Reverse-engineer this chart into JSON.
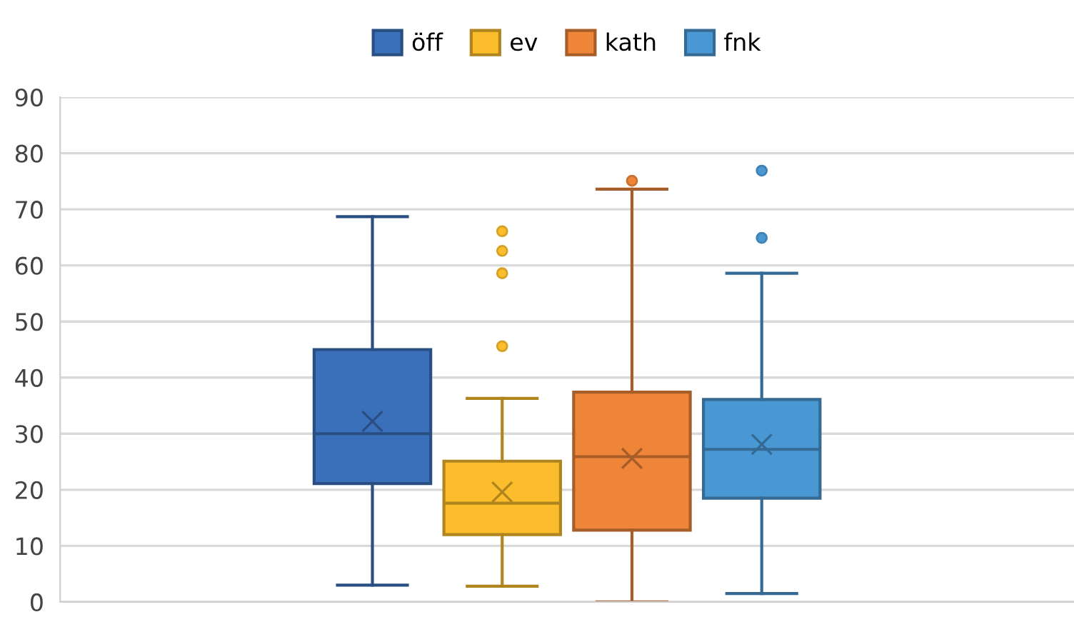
{
  "chart_data": {
    "type": "box",
    "categories": [
      null
    ],
    "series": [
      {
        "name": "öff",
        "color": "#3a6fba",
        "boxes": [
          {
            "low": 3.0,
            "q1": 21.1,
            "median": 30,
            "q3": 45,
            "high": 68.7,
            "mean": 32.2
          }
        ]
      },
      {
        "name": "ev",
        "color": "#fbbd2b",
        "boxes": [
          {
            "low": 2.8,
            "q1": 12.0,
            "median": 17.6,
            "q3": 25.1,
            "high": 36.3,
            "mean": 19.6,
            "outliers": [
              45.6,
              58.6,
              62.6,
              66.1
            ]
          }
        ]
      },
      {
        "name": "kath",
        "color": "#ef8539",
        "boxes": [
          {
            "low": 0,
            "q1": 12.8,
            "median": 25.9,
            "q3": 37.4,
            "high": 73.6,
            "mean": 25.6,
            "outliers": [
              75.1
            ]
          }
        ]
      },
      {
        "name": "fnk",
        "color": "#4a98d3",
        "boxes": [
          {
            "low": 1.5,
            "q1": 18.5,
            "median": 27.2,
            "q3": 36.1,
            "high": 58.6,
            "mean": 28.1,
            "outliers": [
              64.9,
              76.9
            ]
          }
        ]
      }
    ],
    "ylim": [
      0,
      90
    ],
    "yticks": [
      0,
      10,
      20,
      30,
      40,
      50,
      60,
      70,
      80,
      90
    ],
    "grid": "y",
    "legend": "top"
  }
}
